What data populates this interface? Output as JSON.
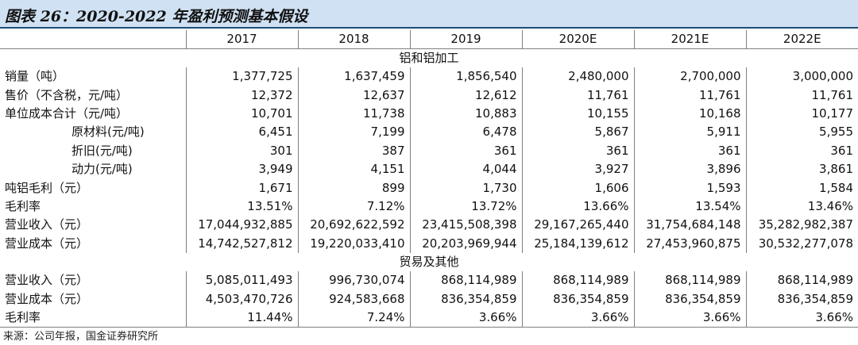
{
  "title": "图表 26：2020-2022 年盈利预测基本假设",
  "columns": [
    "2017",
    "2018",
    "2019",
    "2020E",
    "2021E",
    "2022E"
  ],
  "sections": [
    {
      "name": "铝和铝加工",
      "rows": [
        {
          "label": "销量（吨）",
          "indent": false,
          "values": [
            "1,377,725",
            "1,637,459",
            "1,856,540",
            "2,480,000",
            "2,700,000",
            "3,000,000"
          ]
        },
        {
          "label": "售价（不含税，元/吨）",
          "indent": false,
          "values": [
            "12,372",
            "12,637",
            "12,612",
            "11,761",
            "11,761",
            "11,761"
          ]
        },
        {
          "label": "单位成本合计（元/吨）",
          "indent": false,
          "values": [
            "10,701",
            "11,738",
            "10,883",
            "10,155",
            "10,168",
            "10,177"
          ]
        },
        {
          "label": "原材料(元/吨)",
          "indent": true,
          "values": [
            "6,451",
            "7,199",
            "6,478",
            "5,867",
            "5,911",
            "5,955"
          ]
        },
        {
          "label": "折旧(元/吨)",
          "indent": true,
          "values": [
            "301",
            "387",
            "361",
            "361",
            "361",
            "361"
          ]
        },
        {
          "label": "动力(元/吨)",
          "indent": true,
          "values": [
            "3,949",
            "4,151",
            "4,044",
            "3,927",
            "3,896",
            "3,861"
          ]
        },
        {
          "label": "吨铝毛利（元）",
          "indent": false,
          "values": [
            "1,671",
            "899",
            "1,730",
            "1,606",
            "1,593",
            "1,584"
          ]
        },
        {
          "label": "毛利率",
          "indent": false,
          "values": [
            "13.51%",
            "7.12%",
            "13.72%",
            "13.66%",
            "13.54%",
            "13.46%"
          ]
        },
        {
          "label": "营业收入（元）",
          "indent": false,
          "values": [
            "17,044,932,885",
            "20,692,622,592",
            "23,415,508,398",
            "29,167,265,440",
            "31,754,684,148",
            "35,282,982,387"
          ]
        },
        {
          "label": "营业成本（元）",
          "indent": false,
          "values": [
            "14,742,527,812",
            "19,220,033,410",
            "20,203,969,944",
            "25,184,139,612",
            "27,453,960,875",
            "30,532,277,078"
          ]
        }
      ]
    },
    {
      "name": "贸易及其他",
      "rows": [
        {
          "label": "营业收入（元）",
          "indent": false,
          "values": [
            "5,085,011,493",
            "996,730,074",
            "868,114,989",
            "868,114,989",
            "868,114,989",
            "868,114,989"
          ]
        },
        {
          "label": "营业成本（元）",
          "indent": false,
          "values": [
            "4,503,470,726",
            "924,583,668",
            "836,354,859",
            "836,354,859",
            "836,354,859",
            "836,354,859"
          ]
        },
        {
          "label": "毛利率",
          "indent": false,
          "values": [
            "11.44%",
            "7.24%",
            "3.66%",
            "3.66%",
            "3.66%",
            "3.66%"
          ]
        }
      ]
    }
  ],
  "source": "来源：公司年报，国金证券研究所"
}
